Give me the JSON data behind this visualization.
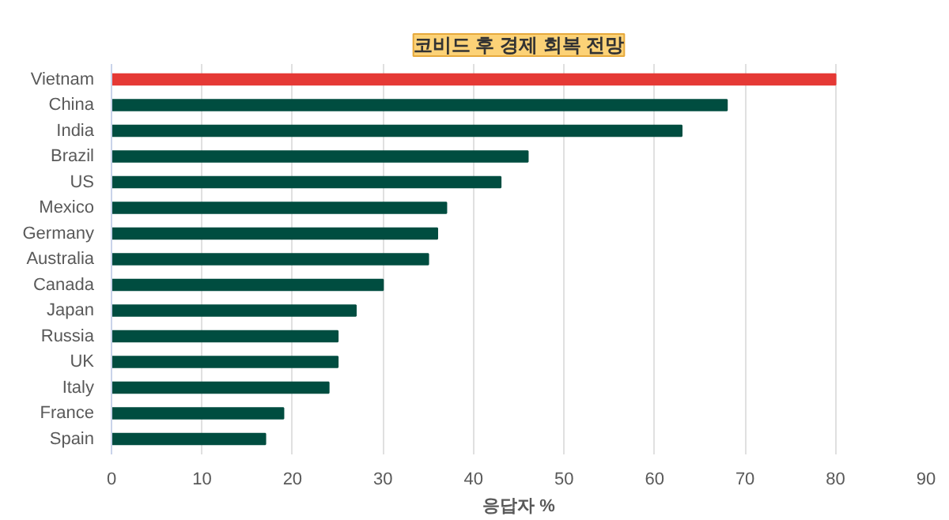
{
  "chart_data": {
    "type": "bar",
    "orientation": "horizontal",
    "title": "코비드 후 경제 회복 전망",
    "xlabel": "응답자 %",
    "categories": [
      "Vietnam",
      "China",
      "India",
      "Brazil",
      "US",
      "Mexico",
      "Germany",
      "Australia",
      "Canada",
      "Japan",
      "Russia",
      "UK",
      "Italy",
      "France",
      "Spain"
    ],
    "values": [
      80,
      68,
      63,
      46,
      43,
      37,
      36,
      35,
      30,
      27,
      25,
      25,
      24,
      19,
      17
    ],
    "colors": [
      "#e53935",
      "#004d40",
      "#004d40",
      "#004d40",
      "#004d40",
      "#004d40",
      "#004d40",
      "#004d40",
      "#004d40",
      "#004d40",
      "#004d40",
      "#004d40",
      "#004d40",
      "#004d40",
      "#004d40"
    ],
    "xlim": [
      0,
      90
    ],
    "xticks": [
      0,
      10,
      20,
      30,
      40,
      50,
      60,
      70,
      80,
      90
    ],
    "grid": "x"
  }
}
